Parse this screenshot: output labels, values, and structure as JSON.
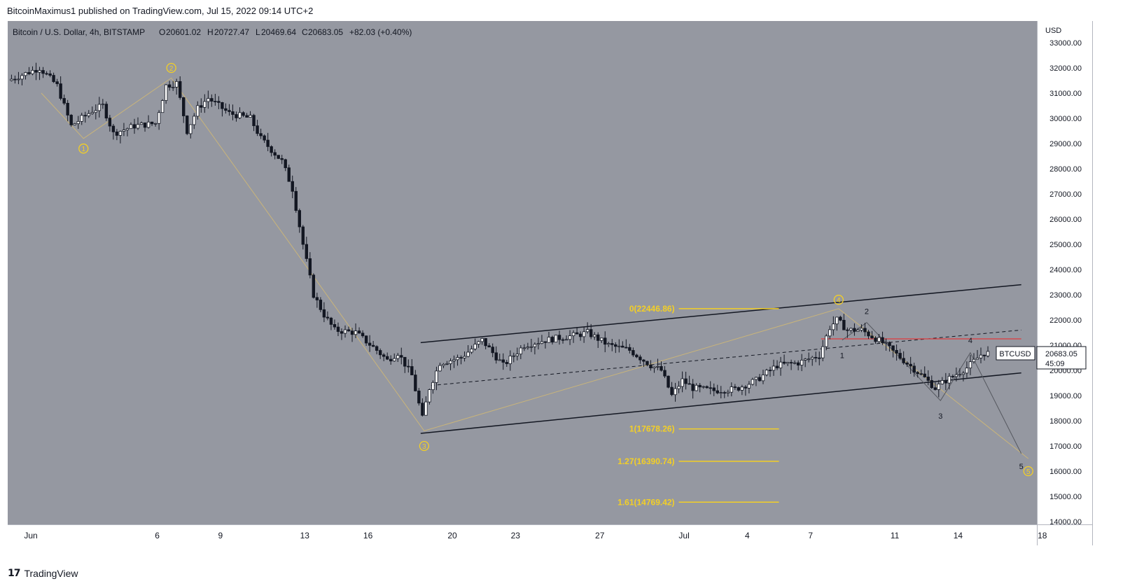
{
  "caption": "BitcoinMaximus1 published on TradingView.com, Jul 15, 2022 09:14 UTC+2",
  "brand": {
    "logo": "17",
    "name": "TradingView"
  },
  "header": {
    "symbol": "Bitcoin / U.S. Dollar, 4h, BITSTAMP",
    "o_label": "O",
    "o_value": "20601.02",
    "h_label": "H",
    "h_value": "20727.47",
    "l_label": "L",
    "l_value": "20469.64",
    "c_label": "C",
    "c_value": "20683.05",
    "change": "+82.03 (+0.40%)"
  },
  "colors": {
    "background": "#9598a1",
    "candle": "#131722",
    "fib": "#f3cf26",
    "wave_line": "#c9b47a",
    "resistance": "#e03a3e",
    "channel": "#131722"
  },
  "chart_data": {
    "type": "candlestick",
    "title": "Bitcoin / U.S. Dollar, 4h, BITSTAMP",
    "currency_label": "USD",
    "ylim": [
      14000,
      33000
    ],
    "y_ticks": [
      "33000.00",
      "32000.00",
      "31000.00",
      "30000.00",
      "29000.00",
      "28000.00",
      "27000.00",
      "26000.00",
      "25000.00",
      "24000.00",
      "23000.00",
      "22000.00",
      "21000.00",
      "20000.00",
      "19000.00",
      "18000.00",
      "17000.00",
      "16000.00",
      "15000.00",
      "14000.00"
    ],
    "x_ticks": [
      {
        "label": "Jun",
        "date": "2022-05-31"
      },
      {
        "label": "6",
        "date": "2022-06-06"
      },
      {
        "label": "9",
        "date": "2022-06-09"
      },
      {
        "label": "13",
        "date": "2022-06-13"
      },
      {
        "label": "16",
        "date": "2022-06-16"
      },
      {
        "label": "20",
        "date": "2022-06-20"
      },
      {
        "label": "23",
        "date": "2022-06-23"
      },
      {
        "label": "27",
        "date": "2022-06-27"
      },
      {
        "label": "Jul",
        "date": "2022-07-01"
      },
      {
        "label": "4",
        "date": "2022-07-04"
      },
      {
        "label": "7",
        "date": "2022-07-07"
      },
      {
        "label": "11",
        "date": "2022-07-11"
      },
      {
        "label": "14",
        "date": "2022-07-14"
      },
      {
        "label": "18",
        "date": "2022-07-18"
      }
    ],
    "price_anchors": [
      [
        "2022-05-30T00:00",
        31500
      ],
      [
        "2022-05-31T12:00",
        32000
      ],
      [
        "2022-06-01T08:00",
        31300
      ],
      [
        "2022-06-02T00:00",
        29700
      ],
      [
        "2022-06-03T00:00",
        30300
      ],
      [
        "2022-06-03T12:00",
        30500
      ],
      [
        "2022-06-04T00:00",
        29400
      ],
      [
        "2022-06-05T00:00",
        29700
      ],
      [
        "2022-06-06T00:00",
        29800
      ],
      [
        "2022-06-06T12:00",
        31300
      ],
      [
        "2022-06-07T00:00",
        31400
      ],
      [
        "2022-06-07T12:00",
        29500
      ],
      [
        "2022-06-08T00:00",
        30400
      ],
      [
        "2022-06-08T12:00",
        30800
      ],
      [
        "2022-06-09T12:00",
        30200
      ],
      [
        "2022-06-10T12:00",
        30000
      ],
      [
        "2022-06-11T00:00",
        29200
      ],
      [
        "2022-06-12T00:00",
        28300
      ],
      [
        "2022-06-12T12:00",
        27200
      ],
      [
        "2022-06-13T00:00",
        25000
      ],
      [
        "2022-06-13T12:00",
        23000
      ],
      [
        "2022-06-14T00:00",
        22200
      ],
      [
        "2022-06-14T12:00",
        21600
      ],
      [
        "2022-06-15T12:00",
        21500
      ],
      [
        "2022-06-16T12:00",
        20800
      ],
      [
        "2022-06-17T00:00",
        20400
      ],
      [
        "2022-06-17T12:00",
        20700
      ],
      [
        "2022-06-18T04:00",
        19800
      ],
      [
        "2022-06-18T16:00",
        18100
      ],
      [
        "2022-06-19T00:00",
        19300
      ],
      [
        "2022-06-19T12:00",
        20300
      ],
      [
        "2022-06-20T12:00",
        20500
      ],
      [
        "2022-06-21T12:00",
        21200
      ],
      [
        "2022-06-22T12:00",
        20200
      ],
      [
        "2022-06-23T12:00",
        21000
      ],
      [
        "2022-06-24T12:00",
        21200
      ],
      [
        "2022-06-26T00:00",
        21400
      ],
      [
        "2022-06-26T12:00",
        21500
      ],
      [
        "2022-06-27T12:00",
        21000
      ],
      [
        "2022-06-28T12:00",
        20800
      ],
      [
        "2022-06-29T12:00",
        20200
      ],
      [
        "2022-06-30T00:00",
        20000
      ],
      [
        "2022-06-30T12:00",
        19000
      ],
      [
        "2022-07-01T00:00",
        19600
      ],
      [
        "2022-07-01T12:00",
        19300
      ],
      [
        "2022-07-02T12:00",
        19200
      ],
      [
        "2022-07-03T12:00",
        19250
      ],
      [
        "2022-07-04T12:00",
        19600
      ],
      [
        "2022-07-05T12:00",
        20200
      ],
      [
        "2022-07-06T12:00",
        20300
      ],
      [
        "2022-07-07T12:00",
        20600
      ],
      [
        "2022-07-08T00:00",
        21700
      ],
      [
        "2022-07-08T08:00",
        22000
      ],
      [
        "2022-07-08T20:00",
        21600
      ],
      [
        "2022-07-09T12:00",
        21600
      ],
      [
        "2022-07-10T12:00",
        21100
      ],
      [
        "2022-07-11T12:00",
        20400
      ],
      [
        "2022-07-12T12:00",
        19700
      ],
      [
        "2022-07-13T00:00",
        19300
      ],
      [
        "2022-07-13T12:00",
        19600
      ],
      [
        "2022-07-14T12:00",
        20100
      ],
      [
        "2022-07-15T06:00",
        20683
      ]
    ],
    "last_price": {
      "symbol": "BTCUSD",
      "value": "20683.05",
      "countdown": "45:09"
    },
    "fib_levels": [
      {
        "label": "0(22446.86)",
        "value": 22446.86
      },
      {
        "label": "1(17678.26)",
        "value": 17678.26
      },
      {
        "label": "1.27(16390.74)",
        "value": 16390.74
      },
      {
        "label": "1.61(14769.42)",
        "value": 14769.42
      }
    ],
    "fib_range": {
      "from": "2022-06-30T18:00",
      "to": "2022-07-05T12:00"
    },
    "channel": {
      "upper": [
        {
          "date": "2022-06-18T12:00",
          "value": 21100
        },
        {
          "date": "2022-07-17T00:00",
          "value": 23400
        }
      ],
      "lower": [
        {
          "date": "2022-06-18T12:00",
          "value": 17500
        },
        {
          "date": "2022-07-17T00:00",
          "value": 19900
        }
      ],
      "middle": [
        {
          "date": "2022-06-19T00:00",
          "value": 19400
        },
        {
          "date": "2022-07-17T00:00",
          "value": 21600
        }
      ]
    },
    "resistance": {
      "value": 21250,
      "from": "2022-07-07T12:00",
      "to": "2022-07-17T00:00"
    },
    "major_waves": [
      {
        "label": "1",
        "date": "2022-06-02T12:00",
        "value": 29200,
        "marker_value": 28800
      },
      {
        "label": "2",
        "date": "2022-06-06T16:00",
        "value": 31600,
        "marker_value": 32000
      },
      {
        "label": "3",
        "date": "2022-06-18T16:00",
        "value": 17600,
        "marker_value": 17000
      },
      {
        "label": "4",
        "date": "2022-07-08T08:00",
        "value": 22446,
        "marker_value": 22800
      },
      {
        "label": "5",
        "date": "2022-07-17T08:00",
        "value": 16500,
        "marker_value": 16000
      }
    ],
    "major_path_start": {
      "date": "2022-05-31T12:00",
      "value": 31000
    },
    "minor_waves": [
      {
        "label": "1",
        "date": "2022-07-08T12:00",
        "value": 21200,
        "label_value": 20600
      },
      {
        "label": "2",
        "date": "2022-07-09T16:00",
        "value": 21900,
        "label_value": 22350
      },
      {
        "label": "3",
        "date": "2022-07-13T04:00",
        "value": 18800,
        "label_value": 18200
      },
      {
        "label": "4",
        "date": "2022-07-14T14:00",
        "value": 20700,
        "label_value": 21200
      },
      {
        "label": "5",
        "date": "2022-07-17T00:00",
        "value": 16700,
        "label_value": 16200
      }
    ]
  }
}
